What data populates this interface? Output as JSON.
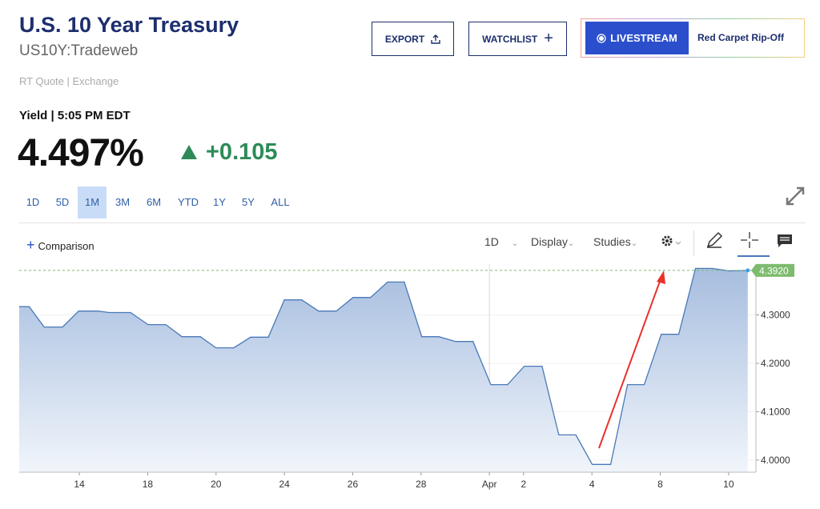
{
  "header": {
    "title": "U.S. 10 Year Treasury",
    "symbol": "US10Y:Tradeweb",
    "quote_source": "RT Quote | Exchange"
  },
  "buttons": {
    "export": "EXPORT",
    "watchlist": "WATCHLIST",
    "livestream": "LIVESTREAM",
    "promo": "Red Carpet Rip-Off"
  },
  "quote": {
    "label": "Yield | 5:05 PM EDT",
    "price": "4.497%",
    "change": "+0.105"
  },
  "ranges": [
    "1D",
    "5D",
    "1M",
    "3M",
    "6M",
    "YTD",
    "1Y",
    "5Y",
    "ALL"
  ],
  "selected_range": "1M",
  "toolbar": {
    "comparison": "Comparison",
    "interval": "1D",
    "display": "Display",
    "studies": "Studies"
  },
  "chart_data": {
    "type": "area",
    "line_color": "#4a78b8",
    "fill_top": "#a7bedf",
    "fill_bottom": "#f1f5fb",
    "grid": true,
    "x": [
      0.24,
      0.53,
      0.97,
      1.51,
      1.98,
      2.56,
      2.87,
      3.5,
      4.01,
      4.53,
      5.0,
      5.54,
      6.0,
      6.52,
      7.01,
      7.53,
      8.0,
      8.51,
      9.0,
      9.52,
      10.01,
      10.52,
      11.02,
      11.51,
      12.02,
      12.52,
      13.01,
      13.52,
      14.04,
      14.53,
      15.02,
      15.54,
      16.03,
      16.53,
      17.01,
      17.55,
      18.04,
      18.53,
      19.03,
      19.54,
      20.03,
      20.52,
      21.02,
      21.56
    ],
    "values": [
      4.317,
      4.317,
      4.275,
      4.275,
      4.308,
      4.308,
      4.305,
      4.305,
      4.28,
      4.28,
      4.255,
      4.255,
      4.232,
      4.232,
      4.254,
      4.254,
      4.331,
      4.331,
      4.308,
      4.308,
      4.336,
      4.336,
      4.368,
      4.368,
      4.255,
      4.255,
      4.245,
      4.245,
      4.156,
      4.156,
      4.194,
      4.194,
      4.052,
      4.052,
      3.991,
      3.991,
      4.156,
      4.156,
      4.26,
      4.26,
      4.396,
      4.396,
      4.391,
      4.392
    ],
    "last_value_label": "4.3920",
    "xlim": [
      0.24,
      21.8
    ],
    "ylim": [
      3.975,
      4.405
    ],
    "xticks": [
      {
        "value": 2,
        "label": "14"
      },
      {
        "value": 4,
        "label": "18"
      },
      {
        "value": 6,
        "label": "20"
      },
      {
        "value": 8,
        "label": "24"
      },
      {
        "value": 10,
        "label": "26"
      },
      {
        "value": 12,
        "label": "28"
      },
      {
        "value": 14,
        "label": "Apr"
      },
      {
        "value": 15,
        "label": "2"
      },
      {
        "value": 17,
        "label": "4"
      },
      {
        "value": 19,
        "label": "8"
      },
      {
        "value": 21,
        "label": "10"
      }
    ],
    "yticks": [
      {
        "value": 4.0,
        "label": "4.0000"
      },
      {
        "value": 4.1,
        "label": "4.1000"
      },
      {
        "value": 4.2,
        "label": "4.2000"
      },
      {
        "value": 4.3,
        "label": "4.3000"
      }
    ]
  }
}
